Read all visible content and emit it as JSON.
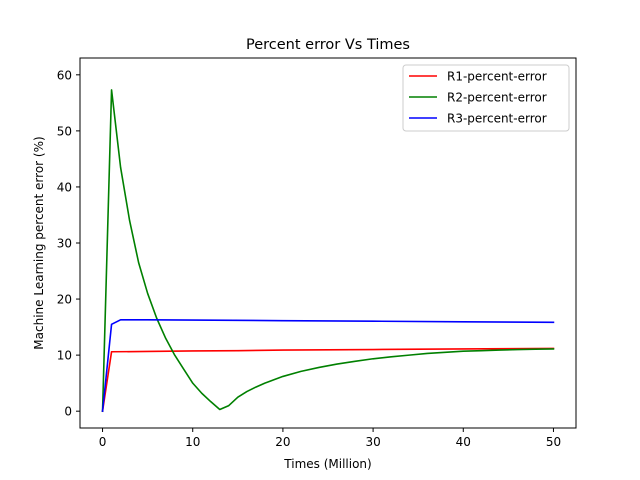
{
  "chart_data": {
    "type": "line",
    "title": "Percent error Vs Times",
    "xlabel": "Times (Million)",
    "ylabel": "Machine Learning percent error (%)",
    "xlim": [
      -2.5,
      52.5
    ],
    "ylim": [
      -3,
      63
    ],
    "xticks": [
      0,
      10,
      20,
      30,
      40,
      50
    ],
    "yticks": [
      0,
      10,
      20,
      30,
      40,
      50,
      60
    ],
    "grid": false,
    "legend": "top-right",
    "series": [
      {
        "name": "R1-percent-error",
        "color": "#ff0000",
        "x": [
          0,
          1,
          5,
          10,
          15,
          20,
          25,
          30,
          35,
          40,
          45,
          50
        ],
        "y": [
          0,
          10.6,
          10.65,
          10.75,
          10.8,
          10.9,
          10.95,
          11.0,
          11.05,
          11.1,
          11.15,
          11.2
        ]
      },
      {
        "name": "R2-percent-error",
        "color": "#008000",
        "x": [
          0,
          1,
          2,
          3,
          4,
          5,
          6,
          7,
          8,
          9,
          10,
          11,
          12,
          13,
          14,
          15,
          16,
          17,
          18,
          19,
          20,
          22,
          24,
          26,
          28,
          30,
          32,
          34,
          36,
          38,
          40,
          42,
          44,
          46,
          48,
          50
        ],
        "y": [
          0,
          57.3,
          43.5,
          34.0,
          26.5,
          21.0,
          16.6,
          13.0,
          10.0,
          7.5,
          5.0,
          3.2,
          1.7,
          0.3,
          1.0,
          2.5,
          3.5,
          4.3,
          5.0,
          5.6,
          6.2,
          7.1,
          7.8,
          8.4,
          8.9,
          9.35,
          9.7,
          10.0,
          10.3,
          10.5,
          10.7,
          10.8,
          10.9,
          11.0,
          11.05,
          11.1
        ]
      },
      {
        "name": "R3-percent-error",
        "color": "#0000ff",
        "x": [
          0,
          1,
          2,
          5,
          10,
          20,
          30,
          40,
          50
        ],
        "y": [
          0,
          15.5,
          16.3,
          16.3,
          16.25,
          16.15,
          16.05,
          15.95,
          15.85
        ]
      }
    ]
  }
}
